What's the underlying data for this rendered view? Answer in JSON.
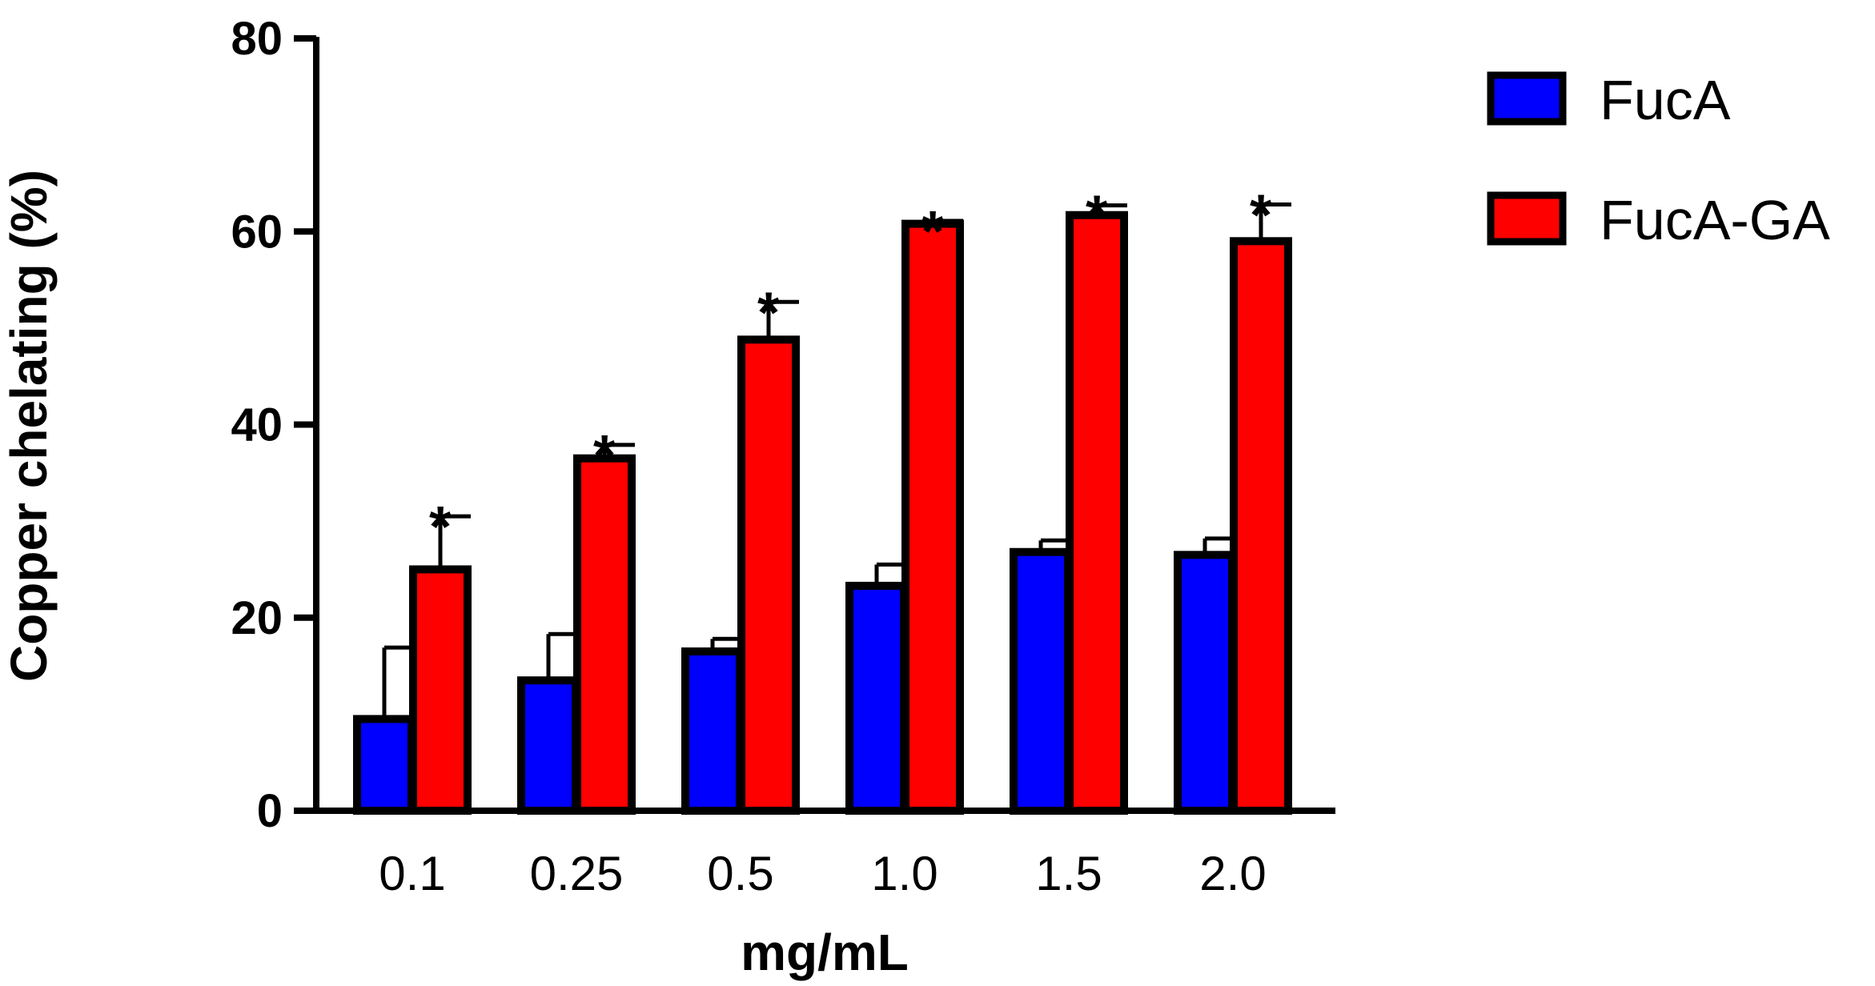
{
  "chart_data": {
    "type": "bar",
    "title": "",
    "xlabel": "mg/mL",
    "ylabel": "Copper chelating (%)",
    "ylim": [
      0,
      80
    ],
    "yticks": [
      "0",
      "20",
      "40",
      "60",
      "80"
    ],
    "categories": [
      "0.1",
      "0.25",
      "0.5",
      "1.0",
      "1.5",
      "2.0"
    ],
    "legend_position": "top-right",
    "series": [
      {
        "name": "FucA",
        "color": "#0000ff",
        "values": [
          9.5,
          13.5,
          16.5,
          23.3,
          26.8,
          26.5
        ],
        "errors": [
          7.4,
          4.8,
          1.3,
          2.2,
          1.2,
          1.7
        ]
      },
      {
        "name": "FucA-GA",
        "color": "#ff0000",
        "values": [
          25,
          36.5,
          48.8,
          60.8,
          61.7,
          59
        ],
        "errors": [
          5.5,
          1.4,
          3.9,
          0.3,
          1,
          3.8
        ]
      }
    ],
    "annotations": [
      "*",
      "*",
      "*",
      "*",
      "*",
      "*"
    ]
  }
}
